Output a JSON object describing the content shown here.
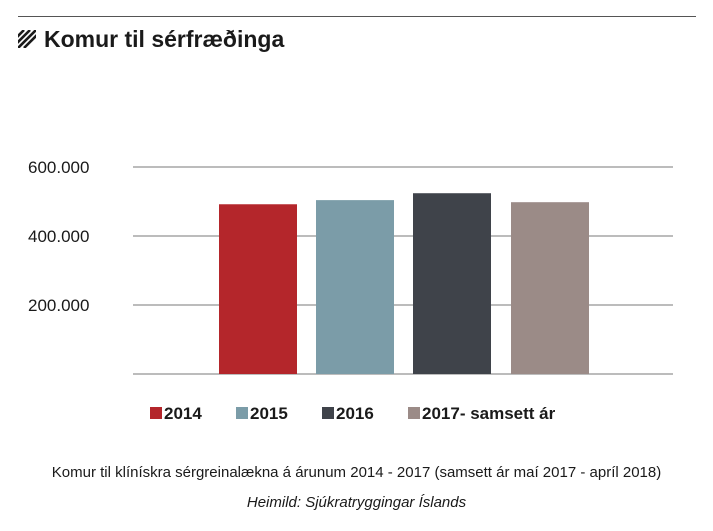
{
  "header": {
    "title": "Komur til sérfræðinga",
    "icon": "hatch-icon"
  },
  "chart_data": {
    "type": "bar",
    "title": "Komur til sérfræðinga",
    "categories": [
      "2014",
      "2015",
      "2016",
      "2017- samsett ár"
    ],
    "values": [
      492000,
      504000,
      524000,
      498000
    ],
    "colors": [
      "#b4262b",
      "#7b9ca8",
      "#3f434a",
      "#9b8b87"
    ],
    "ylim": [
      0,
      600000
    ],
    "yticks": [
      200000,
      400000,
      600000
    ],
    "ytick_labels": [
      "200.000",
      "400.000",
      "600.000"
    ],
    "grid": true,
    "legend_position": "bottom",
    "xlabel": "",
    "ylabel": ""
  },
  "caption": {
    "main": "Komur til klínískra sérgreinalækna á árunum 2014 - 2017 (samsett ár maí 2017 - apríl 2018)",
    "source": "Heimild: Sjúkratryggingar Íslands"
  }
}
